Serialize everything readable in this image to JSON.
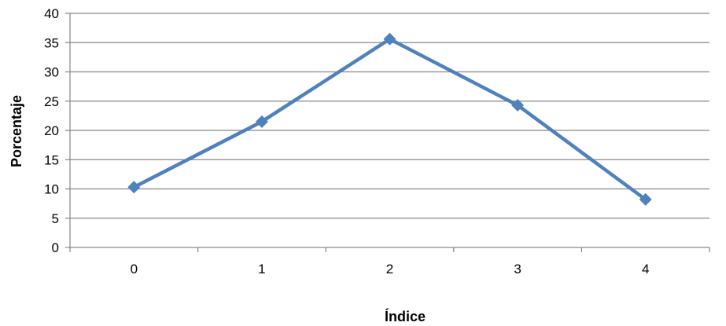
{
  "chart_data": {
    "type": "line",
    "x": [
      0,
      1,
      2,
      3,
      4
    ],
    "series": [
      {
        "values": [
          10.3,
          21.5,
          35.6,
          24.3,
          8.2
        ]
      }
    ],
    "xlabel": "Índice",
    "ylabel": "Porcentaje",
    "ylim": [
      0,
      40
    ],
    "yticks": [
      0,
      5,
      10,
      15,
      20,
      25,
      30,
      35,
      40
    ],
    "xticks": [
      "0",
      "1",
      "2",
      "3",
      "4"
    ],
    "grid": true,
    "legend": "none",
    "colors": {
      "series": "#4F81BD",
      "grid": "#868686",
      "axis": "#868686"
    }
  }
}
